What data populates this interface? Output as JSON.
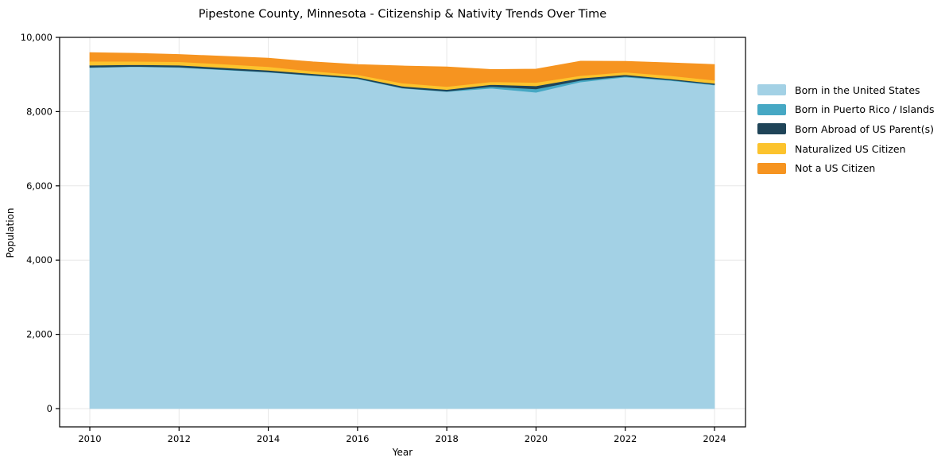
{
  "chart_data": {
    "type": "area",
    "stacked": true,
    "title": "Pipestone County, Minnesota - Citizenship & Nativity Trends Over Time",
    "xlabel": "Year",
    "ylabel": "Population",
    "x": [
      2010,
      2011,
      2012,
      2013,
      2014,
      2015,
      2016,
      2017,
      2018,
      2019,
      2020,
      2021,
      2022,
      2023,
      2024
    ],
    "series": [
      {
        "name": "Born in the United States",
        "color": "#a3d1e5",
        "values": [
          9185,
          9210,
          9190,
          9125,
          9060,
          8970,
          8885,
          8630,
          8540,
          8630,
          8520,
          8800,
          8930,
          8840,
          8715
        ]
      },
      {
        "name": "Born in Puerto Rico / Islands",
        "color": "#46a8c4",
        "values": [
          10,
          10,
          10,
          10,
          10,
          10,
          10,
          10,
          10,
          45,
          90,
          45,
          20,
          15,
          15
        ]
      },
      {
        "name": "Born Abroad of US Parent(s)",
        "color": "#1f4458",
        "values": [
          55,
          45,
          50,
          50,
          45,
          40,
          35,
          45,
          45,
          55,
          85,
          55,
          45,
          30,
          30
        ]
      },
      {
        "name": "Naturalized US Citizen",
        "color": "#fcc32d",
        "values": [
          105,
          90,
          95,
          95,
          95,
          70,
          65,
          85,
          80,
          75,
          90,
          70,
          70,
          85,
          85
        ]
      },
      {
        "name": "Not a US Citizen",
        "color": "#f69420",
        "values": [
          235,
          215,
          195,
          210,
          230,
          250,
          275,
          460,
          530,
          330,
          360,
          390,
          290,
          345,
          425
        ]
      }
    ],
    "xlim": [
      2009.3,
      2024.7
    ],
    "ylim": [
      0,
      10000
    ],
    "xticks": [
      2010,
      2012,
      2014,
      2016,
      2018,
      2020,
      2022,
      2024
    ],
    "xtick_labels": [
      "2010",
      "2012",
      "2014",
      "2016",
      "2018",
      "2020",
      "2022",
      "2024"
    ],
    "yticks": [
      0,
      2000,
      4000,
      6000,
      8000,
      10000
    ],
    "ytick_labels": [
      "0",
      "2,000",
      "4,000",
      "6,000",
      "8,000",
      "10,000"
    ],
    "grid": true,
    "gridline_color": "#e7e7e7",
    "spine_color": "#000000",
    "legend_position": "right"
  }
}
